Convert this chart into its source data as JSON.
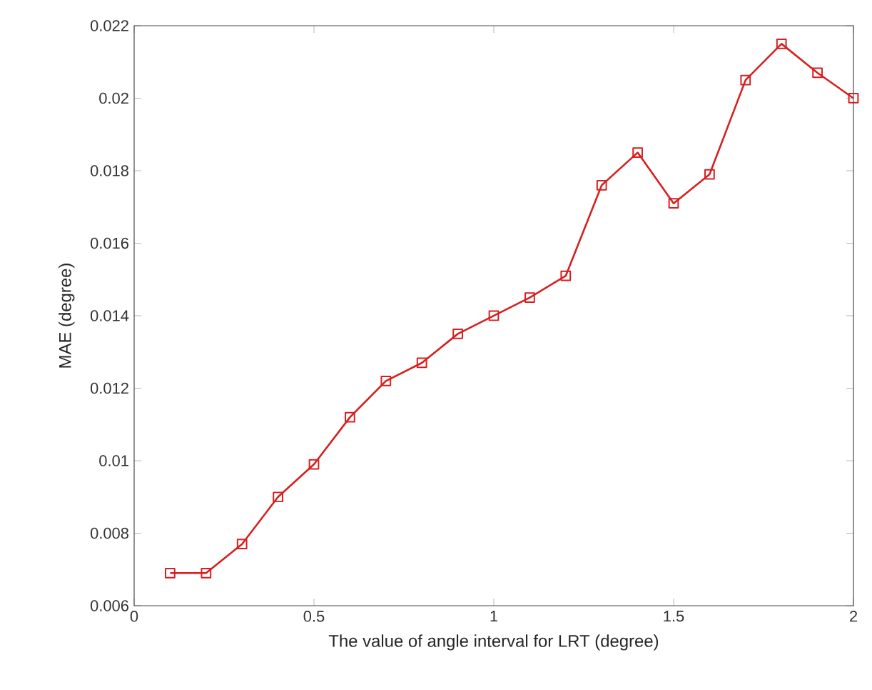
{
  "chart_data": {
    "type": "line",
    "xlabel": "The value of angle interval for LRT (degree)",
    "ylabel": "MAE (degree)",
    "x": [
      0.1,
      0.2,
      0.3,
      0.4,
      0.5,
      0.6,
      0.7,
      0.8,
      0.9,
      1.0,
      1.1,
      1.2,
      1.3,
      1.4,
      1.5,
      1.6,
      1.7,
      1.8,
      1.9,
      2.0
    ],
    "series": [
      {
        "color": "#d62020",
        "values": [
          0.0069,
          0.0069,
          0.0077,
          0.009,
          0.0099,
          0.0112,
          0.0122,
          0.0127,
          0.0135,
          0.014,
          0.0145,
          0.0151,
          0.0176,
          0.0185,
          0.0171,
          0.0179,
          0.0205,
          0.0215,
          0.0207,
          0.02
        ]
      }
    ],
    "xlim": [
      0,
      2
    ],
    "ylim": [
      0.006,
      0.022
    ],
    "xticks": [
      0,
      0.5,
      1,
      1.5,
      2
    ],
    "yticks": [
      0.006,
      0.008,
      0.01,
      0.012,
      0.014,
      0.016,
      0.018,
      0.02,
      0.022
    ],
    "marker": "square",
    "line_style": "solid"
  }
}
